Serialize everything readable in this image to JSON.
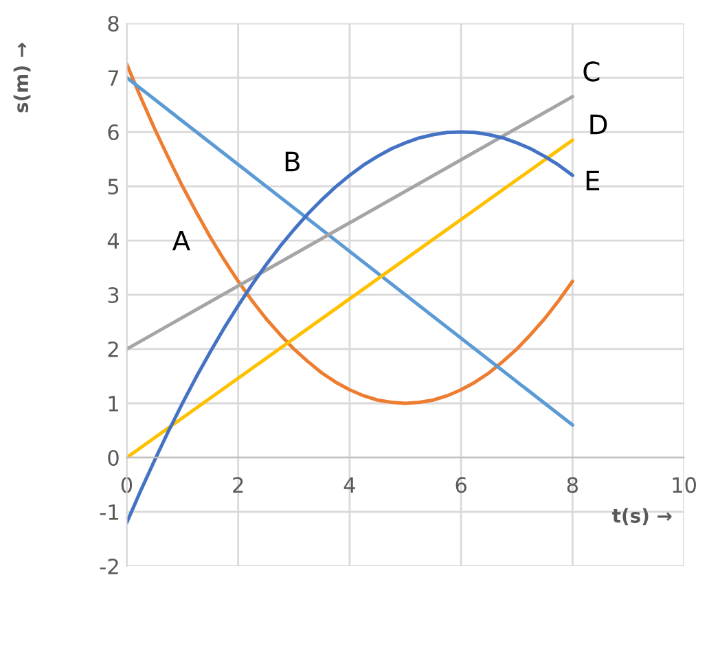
{
  "chart_data": {
    "type": "line",
    "xlabel": "t(s) →",
    "ylabel": "s(m) →",
    "xlim": [
      0,
      10
    ],
    "xticks": [
      0,
      2,
      4,
      6,
      8,
      10
    ],
    "ylim": [
      -2,
      8
    ],
    "yticks": [
      -2,
      -1,
      0,
      1,
      2,
      3,
      4,
      5,
      6,
      7,
      8
    ],
    "grid": true,
    "marker": "none",
    "line_style": "solid",
    "series": [
      {
        "name": "A",
        "color": "#ed7d31",
        "x": [
          0,
          0.25,
          0.5,
          0.75,
          1,
          1.25,
          1.5,
          1.75,
          2,
          2.25,
          2.5,
          2.75,
          3,
          3.25,
          3.5,
          3.75,
          4,
          4.25,
          4.5,
          4.75,
          5,
          5.25,
          5.5,
          5.75,
          6,
          6.25,
          6.5,
          6.75,
          7,
          7.25,
          7.5,
          7.75,
          8
        ],
        "values": [
          7.25,
          6.64,
          6.06,
          5.52,
          5,
          4.52,
          4.06,
          3.64,
          3.25,
          2.89,
          2.56,
          2.27,
          2,
          1.77,
          1.56,
          1.39,
          1.25,
          1.14,
          1.06,
          1.02,
          1,
          1.02,
          1.06,
          1.14,
          1.25,
          1.39,
          1.56,
          1.77,
          2,
          2.27,
          2.56,
          2.89,
          3.25
        ]
      },
      {
        "name": "B",
        "color": "#5b9bd5",
        "x": [
          0,
          8
        ],
        "values": [
          7,
          0.6
        ]
      },
      {
        "name": "C",
        "color": "#a5a5a5",
        "x": [
          0,
          8
        ],
        "values": [
          2,
          6.65
        ]
      },
      {
        "name": "D",
        "color": "#ffc000",
        "x": [
          0,
          8
        ],
        "values": [
          0,
          5.85
        ]
      },
      {
        "name": "E",
        "color": "#4472c4",
        "x": [
          0,
          0.25,
          0.5,
          0.75,
          1,
          1.25,
          1.5,
          1.75,
          2,
          2.25,
          2.5,
          2.75,
          3,
          3.25,
          3.5,
          3.75,
          4,
          4.25,
          4.5,
          4.75,
          5,
          5.25,
          5.5,
          5.75,
          6,
          6.25,
          6.5,
          6.75,
          7,
          7.25,
          7.5,
          7.75,
          8
        ],
        "values": [
          -1.2,
          -0.61,
          -0.05,
          0.49,
          1,
          1.49,
          1.95,
          2.39,
          2.8,
          3.19,
          3.55,
          3.89,
          4.2,
          4.49,
          4.75,
          4.99,
          5.2,
          5.39,
          5.55,
          5.69,
          5.8,
          5.89,
          5.95,
          5.99,
          6,
          5.99,
          5.95,
          5.89,
          5.8,
          5.69,
          5.55,
          5.39,
          5.2
        ]
      }
    ]
  }
}
